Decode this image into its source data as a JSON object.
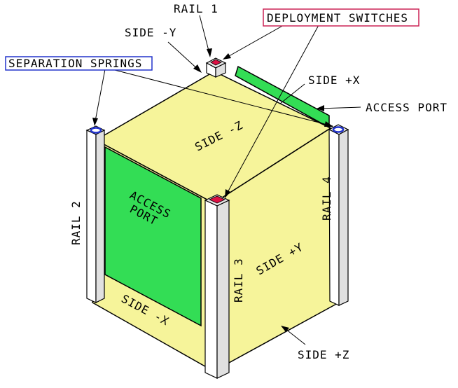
{
  "labels": {
    "rail_1": "RAIL 1",
    "rail_2": "RAIL 2",
    "rail_3": "RAIL 3",
    "rail_4": "RAIL 4",
    "side_neg_y": "SIDE -Y",
    "side_pos_x": "SIDE +X",
    "side_neg_z": "SIDE -Z",
    "side_pos_y": "SIDE +Y",
    "side_neg_x": "SIDE -X",
    "side_pos_z": "SIDE +Z",
    "access_port": "ACCESS PORT",
    "access_port_face_line1": "ACCESS",
    "access_port_face_line2": "PORT",
    "deployment_switches": "DEPLOYMENT SWITCHES",
    "separation_springs": "SEPARATION SPRINGS"
  },
  "colors": {
    "cube_face": "#f6f49a",
    "access_port": "#33dd55",
    "deployment_switch": "#dd1144",
    "spring_ring": "#2233cc",
    "deployment_box": "#cc2255",
    "springs_box": "#2233cc",
    "outline": "#000000"
  }
}
